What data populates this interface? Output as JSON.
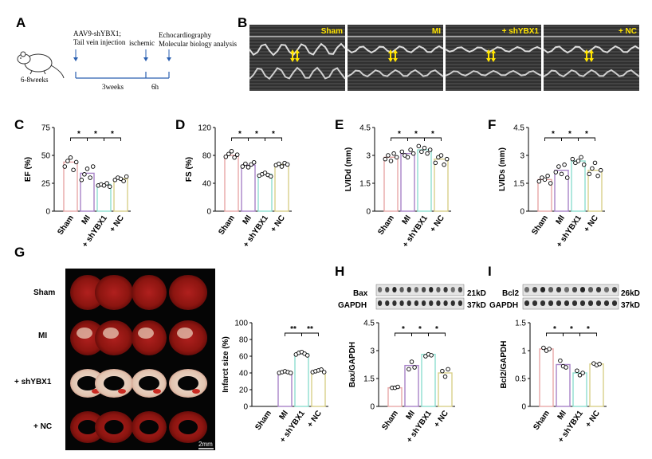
{
  "panel_letters": [
    "A",
    "B",
    "C",
    "D",
    "E",
    "F",
    "G",
    "H",
    "I"
  ],
  "panel_a": {
    "mouse_age": "6-8weeks",
    "step1": "AAV9-shYBX1;",
    "step1b": "Tail vein injection",
    "step2": "ischemic",
    "step3": "Echocardiography",
    "step3b": "Molecular biology analysis",
    "interval1": "3weeks",
    "interval2": "6h"
  },
  "panel_b": {
    "labels": [
      "Sham",
      "MI",
      "+ shYBX1",
      "+ NC"
    ]
  },
  "panel_g": {
    "rows": [
      "Sham",
      "MI",
      "+ shYBX1",
      "+ NC"
    ],
    "scale_bar": "2mm"
  },
  "blots": {
    "h": {
      "top_label": "Bax",
      "top_kd": "21kD",
      "bottom_label": "GAPDH",
      "bottom_kd": "37kD"
    },
    "i": {
      "top_label": "Bcl2",
      "top_kd": "26kD",
      "bottom_label": "GAPDH",
      "bottom_kd": "37kD"
    }
  },
  "colors": {
    "sham": "#e8a7a7",
    "mi": "#a883c8",
    "shybx1": "#8fdfd0",
    "nc": "#d9cf8a"
  },
  "chart_data": [
    {
      "id": "C",
      "type": "bar",
      "categories": [
        "Sham",
        "MI",
        "+ shYBX1",
        "+ NC"
      ],
      "values": [
        44,
        34,
        24,
        29
      ],
      "points": [
        [
          40,
          45,
          48,
          37,
          44
        ],
        [
          28,
          33,
          38,
          30,
          40
        ],
        [
          23,
          24,
          23,
          25,
          22
        ],
        [
          28,
          30,
          29,
          27,
          31
        ]
      ],
      "ylabel": "EF (%)",
      "ylim": [
        0,
        75
      ],
      "yticks": [
        0,
        25,
        50,
        75
      ],
      "sig": "*"
    },
    {
      "id": "D",
      "type": "bar",
      "categories": [
        "Sham",
        "MI",
        "+ shYBX1",
        "+ NC"
      ],
      "values": [
        80,
        66,
        53,
        67
      ],
      "points": [
        [
          78,
          82,
          86,
          77,
          81
        ],
        [
          64,
          68,
          63,
          67,
          70
        ],
        [
          51,
          53,
          55,
          52,
          50
        ],
        [
          66,
          68,
          64,
          69,
          67
        ]
      ],
      "ylabel": "FS (%)",
      "ylim": [
        0,
        120
      ],
      "yticks": [
        0,
        40,
        80,
        120
      ],
      "sig": "*"
    },
    {
      "id": "E",
      "type": "bar",
      "categories": [
        "Sham",
        "MI",
        "+ shYBX1",
        "+ NC"
      ],
      "values": [
        2.9,
        3.1,
        3.3,
        2.8
      ],
      "points": [
        [
          2.8,
          3.0,
          2.7,
          3.1,
          2.9
        ],
        [
          3.2,
          3.0,
          2.9,
          3.3,
          3.1
        ],
        [
          3.5,
          3.2,
          3.4,
          3.1,
          3.3
        ],
        [
          2.6,
          2.9,
          3.0,
          2.5,
          2.8
        ]
      ],
      "ylabel": "LVIDd (mm)",
      "ylim": [
        0,
        4.5
      ],
      "yticks": [
        0,
        1.5,
        3.0,
        4.5
      ],
      "sig": "*"
    },
    {
      "id": "F",
      "type": "bar",
      "categories": [
        "Sham",
        "MI",
        "+ shYBX1",
        "+ NC"
      ],
      "values": [
        1.7,
        2.2,
        2.7,
        2.2
      ],
      "points": [
        [
          1.6,
          1.8,
          1.7,
          1.9,
          1.5
        ],
        [
          2.1,
          2.4,
          2.0,
          2.5,
          1.8
        ],
        [
          2.8,
          2.6,
          2.7,
          2.9,
          2.5
        ],
        [
          2.0,
          2.3,
          2.6,
          1.9,
          2.2
        ]
      ],
      "ylabel": "LVIDs (mm)",
      "ylim": [
        0,
        4.5
      ],
      "yticks": [
        0,
        1.5,
        3.0,
        4.5
      ],
      "sig": "*"
    },
    {
      "id": "G",
      "type": "bar",
      "categories": [
        "Sham",
        "MI",
        "+ shYBX1",
        "+ NC"
      ],
      "values": [
        0,
        41,
        63,
        42
      ],
      "points": [
        [],
        [
          40,
          41,
          42,
          41,
          40
        ],
        [
          62,
          64,
          65,
          63,
          61
        ],
        [
          41,
          42,
          43,
          44,
          41
        ]
      ],
      "ylabel": "Infarct size (%)",
      "ylim": [
        0,
        100
      ],
      "yticks": [
        0,
        20,
        40,
        60,
        80,
        100
      ],
      "sig": "**"
    },
    {
      "id": "H",
      "type": "bar",
      "categories": [
        "Sham",
        "MI",
        "+ shYBX1",
        "+ NC"
      ],
      "values": [
        1.0,
        2.2,
        2.8,
        1.8
      ],
      "points": [
        [
          1.0,
          1.0,
          1.05
        ],
        [
          2.0,
          2.4,
          2.1
        ],
        [
          2.7,
          2.8,
          2.75
        ],
        [
          1.9,
          1.6,
          2.0
        ]
      ],
      "ylabel": "Bax/GAPDH",
      "ylim": [
        0,
        4.5
      ],
      "yticks": [
        0,
        1.5,
        3.0,
        4.5
      ],
      "sig": "*"
    },
    {
      "id": "I",
      "type": "bar",
      "categories": [
        "Sham",
        "MI",
        "+ shYBX1",
        "+ NC"
      ],
      "values": [
        1.03,
        0.75,
        0.6,
        0.76
      ],
      "points": [
        [
          1.05,
          1.0,
          1.03
        ],
        [
          0.82,
          0.72,
          0.7
        ],
        [
          0.64,
          0.56,
          0.6
        ],
        [
          0.77,
          0.74,
          0.76
        ]
      ],
      "ylabel": "Bcl2/GAPDH",
      "ylim": [
        0,
        1.5
      ],
      "yticks": [
        0,
        0.5,
        1.0,
        1.5
      ],
      "sig": "*"
    }
  ]
}
